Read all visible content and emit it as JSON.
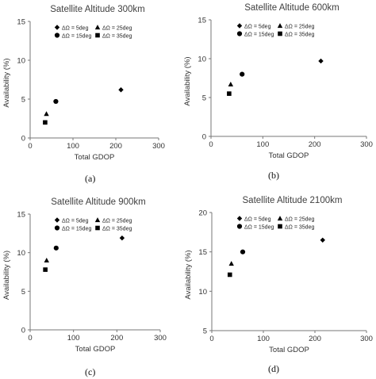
{
  "chart_data": [
    {
      "type": "scatter",
      "title": "Satellite Altitude 300km",
      "caption": "(a)",
      "xlabel": "Total GDOP",
      "ylabel": "Availability (%)",
      "xlim": [
        0,
        300
      ],
      "ylim": [
        0,
        15
      ],
      "xticks": [
        "0",
        "100",
        "200",
        "300"
      ],
      "yticks": [
        "0",
        "5",
        "10",
        "15"
      ],
      "grid": false,
      "legend_position": "top-center",
      "series": [
        {
          "name": "ΔΩ = 5deg",
          "marker": "diamond",
          "x": [
            212
          ],
          "y": [
            6.2
          ]
        },
        {
          "name": "ΔΩ = 15deg",
          "marker": "circle",
          "x": [
            60
          ],
          "y": [
            4.7
          ]
        },
        {
          "name": "ΔΩ = 25deg",
          "marker": "triangle",
          "x": [
            38
          ],
          "y": [
            3.1
          ]
        },
        {
          "name": "ΔΩ = 35deg",
          "marker": "square",
          "x": [
            35
          ],
          "y": [
            2.0
          ]
        }
      ]
    },
    {
      "type": "scatter",
      "title": "Satellite Altitude 600km",
      "caption": "(b)",
      "xlabel": "Total GDOP",
      "ylabel": "Availability (%)",
      "xlim": [
        0,
        300
      ],
      "ylim": [
        0,
        15
      ],
      "xticks": [
        "0",
        "100",
        "200",
        "300"
      ],
      "yticks": [
        "0",
        "5",
        "10",
        "15"
      ],
      "grid": false,
      "legend_position": "top-center",
      "series": [
        {
          "name": "ΔΩ = 5deg",
          "marker": "diamond",
          "x": [
            212
          ],
          "y": [
            9.7
          ]
        },
        {
          "name": "ΔΩ = 15deg",
          "marker": "circle",
          "x": [
            60
          ],
          "y": [
            8.0
          ]
        },
        {
          "name": "ΔΩ = 25deg",
          "marker": "triangle",
          "x": [
            38
          ],
          "y": [
            6.7
          ]
        },
        {
          "name": "ΔΩ = 35deg",
          "marker": "square",
          "x": [
            35
          ],
          "y": [
            5.5
          ]
        }
      ]
    },
    {
      "type": "scatter",
      "title": "Satellite Altitude 900km",
      "caption": "(c)",
      "xlabel": "Total GDOP",
      "ylabel": "Availability (%)",
      "xlim": [
        0,
        300
      ],
      "ylim": [
        0,
        15
      ],
      "xticks": [
        "0",
        "100",
        "200",
        "300"
      ],
      "yticks": [
        "0",
        "5",
        "10",
        "15"
      ],
      "grid": false,
      "legend_position": "top-center",
      "series": [
        {
          "name": "ΔΩ = 5deg",
          "marker": "diamond",
          "x": [
            212
          ],
          "y": [
            11.9
          ]
        },
        {
          "name": "ΔΩ = 15deg",
          "marker": "circle",
          "x": [
            60
          ],
          "y": [
            10.6
          ]
        },
        {
          "name": "ΔΩ = 25deg",
          "marker": "triangle",
          "x": [
            38
          ],
          "y": [
            9.0
          ]
        },
        {
          "name": "ΔΩ = 35deg",
          "marker": "square",
          "x": [
            35
          ],
          "y": [
            7.8
          ]
        }
      ]
    },
    {
      "type": "scatter",
      "title": "Satellite Altitude 2100km",
      "caption": "(d)",
      "xlabel": "Total GDOP",
      "ylabel": "Availability (%)",
      "xlim": [
        0,
        300
      ],
      "ylim": [
        5,
        20
      ],
      "xticks": [
        "0",
        "100",
        "200",
        "300"
      ],
      "yticks": [
        "5",
        "10",
        "15",
        "20"
      ],
      "grid": false,
      "legend_position": "top-center",
      "series": [
        {
          "name": "ΔΩ = 5deg",
          "marker": "diamond",
          "x": [
            215
          ],
          "y": [
            16.5
          ]
        },
        {
          "name": "ΔΩ = 15deg",
          "marker": "circle",
          "x": [
            60
          ],
          "y": [
            15.0
          ]
        },
        {
          "name": "ΔΩ = 25deg",
          "marker": "triangle",
          "x": [
            38
          ],
          "y": [
            13.5
          ]
        },
        {
          "name": "ΔΩ = 35deg",
          "marker": "square",
          "x": [
            35
          ],
          "y": [
            12.1
          ]
        }
      ]
    }
  ]
}
